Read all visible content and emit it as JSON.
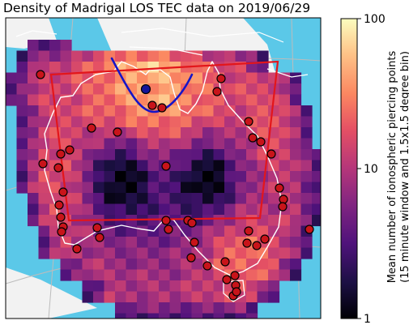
{
  "chart_data": {
    "type": "heatmap",
    "title": "Density of Madrigal LOS TEC data on 2019/06/29",
    "colorbar": {
      "label_line1": "Mean number of ionospheric piercing points",
      "label_line2": "(15 minute window and 1.5x1.5 degree bin)",
      "scale": "log",
      "colormap": "magma",
      "range": [
        1,
        100
      ],
      "ticks": [
        "1",
        "10",
        "100"
      ]
    },
    "background": {
      "ocean": "#5bc8e8",
      "land": "#f2f2f2",
      "coastline": "#ffffff",
      "graticule": "#bcbcbc"
    },
    "highlights": {
      "box": "#e3161b",
      "curve": "#1515c8",
      "station": "#c8141a",
      "special_station": "#15159a"
    },
    "density_note": "mean IPP count per bin; highest around the tropical north and south-east, lowest in the central interior"
  }
}
